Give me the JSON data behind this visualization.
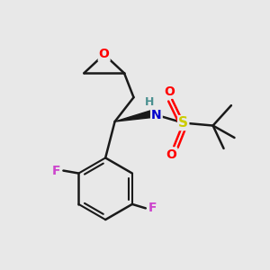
{
  "bg_color": "#e8e8e8",
  "bond_color": "#1a1a1a",
  "atom_colors": {
    "O": "#ff0000",
    "N": "#0000cc",
    "H": "#4a9090",
    "S": "#cccc00",
    "F": "#cc44cc"
  },
  "figsize": [
    3.0,
    3.0
  ],
  "dpi": 100
}
